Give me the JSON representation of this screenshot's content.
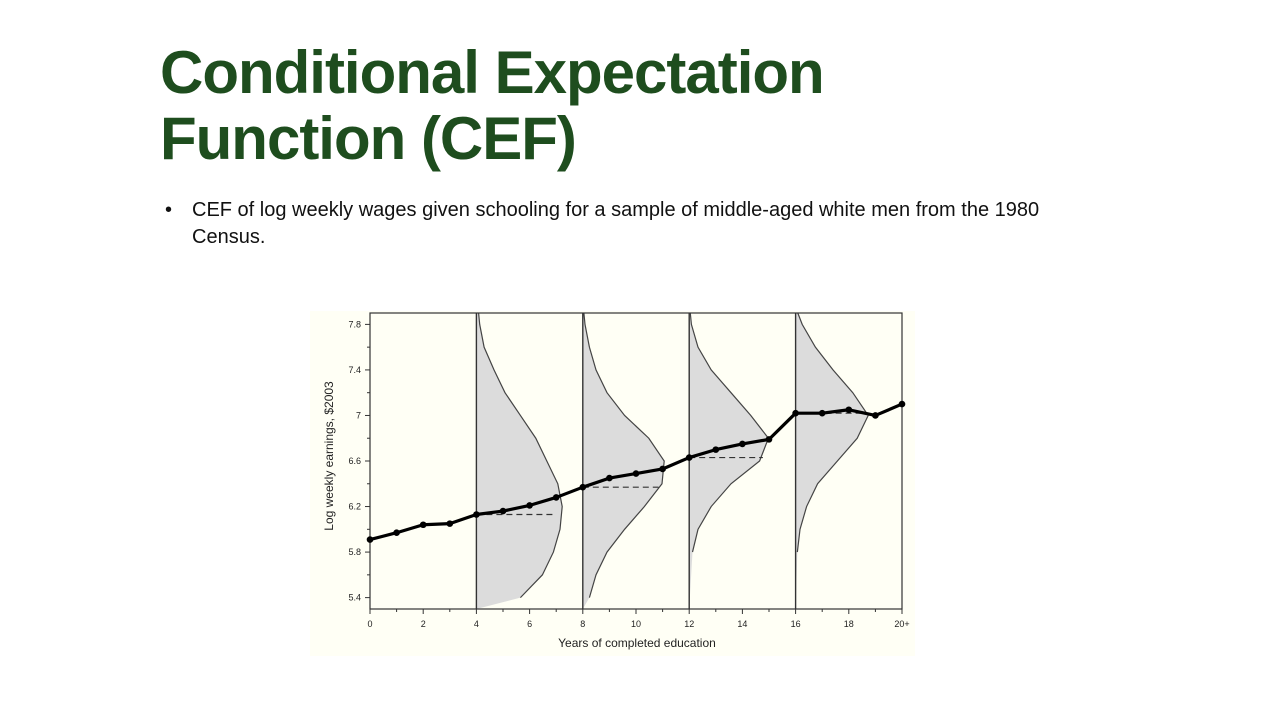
{
  "slide": {
    "title_line1": "Conditional Expectation",
    "title_line2": "Function (CEF)",
    "bullets": [
      "CEF of log weekly wages given schooling for a sample of middle-aged white men from the 1980 Census."
    ],
    "bullet_marker": "•"
  },
  "colors": {
    "title": "#1e4d1e",
    "plot_background": "#fffff5",
    "density_fill": "#dcdcdc",
    "line": "#000000"
  },
  "chart_data": {
    "type": "line",
    "xlabel": "Years of completed education",
    "ylabel": "Log weekly earnings, $2003",
    "xlim": [
      0,
      20
    ],
    "ylim": [
      5.3,
      7.9
    ],
    "x_ticks": [
      0,
      2,
      4,
      6,
      8,
      10,
      12,
      14,
      16,
      18,
      20
    ],
    "x_tick_labels": [
      "0",
      "2",
      "4",
      "6",
      "8",
      "10",
      "12",
      "14",
      "16",
      "18",
      "20+"
    ],
    "y_ticks": [
      5.4,
      5.8,
      6.2,
      6.6,
      7.0,
      7.4,
      7.8
    ],
    "y_tick_labels": [
      "5.4",
      "5.8",
      "6.2",
      "6.6",
      "7",
      "7.4",
      "7.8"
    ],
    "grid": false,
    "legend": "none",
    "series": [
      {
        "x": [
          0,
          1,
          2,
          3,
          4,
          5,
          6,
          7,
          8,
          9,
          10,
          11,
          12,
          13,
          14,
          15,
          16,
          17,
          18,
          19,
          20
        ],
        "y": [
          5.91,
          5.97,
          6.04,
          6.05,
          6.13,
          6.16,
          6.21,
          6.28,
          6.37,
          6.45,
          6.49,
          6.53,
          6.63,
          6.7,
          6.75,
          6.79,
          7.02,
          7.02,
          7.05,
          7.0,
          7.1
        ]
      }
    ],
    "conditional_distributions": [
      {
        "at_x": 4,
        "mean": 6.13,
        "density": [
          [
            5.4,
            2.0
          ],
          [
            5.6,
            3.0
          ],
          [
            5.8,
            3.5
          ],
          [
            6.0,
            3.8
          ],
          [
            6.2,
            3.9
          ],
          [
            6.4,
            3.7
          ],
          [
            6.6,
            3.2
          ],
          [
            6.8,
            2.7
          ],
          [
            7.0,
            2.0
          ],
          [
            7.2,
            1.3
          ],
          [
            7.4,
            0.8
          ],
          [
            7.6,
            0.35
          ],
          [
            7.8,
            0.15
          ],
          [
            7.9,
            0.1
          ]
        ]
      },
      {
        "at_x": 8,
        "mean": 6.37,
        "density": [
          [
            5.4,
            0.3
          ],
          [
            5.6,
            0.6
          ],
          [
            5.8,
            1.1
          ],
          [
            6.0,
            1.9
          ],
          [
            6.2,
            2.8
          ],
          [
            6.4,
            3.6
          ],
          [
            6.6,
            3.7
          ],
          [
            6.8,
            3.0
          ],
          [
            7.0,
            1.9
          ],
          [
            7.2,
            1.1
          ],
          [
            7.4,
            0.6
          ],
          [
            7.6,
            0.3
          ],
          [
            7.8,
            0.1
          ],
          [
            7.9,
            0.05
          ]
        ]
      },
      {
        "at_x": 12,
        "mean": 6.63,
        "density": [
          [
            5.8,
            0.15
          ],
          [
            6.0,
            0.4
          ],
          [
            6.2,
            1.0
          ],
          [
            6.4,
            1.9
          ],
          [
            6.6,
            3.2
          ],
          [
            6.8,
            3.6
          ],
          [
            7.0,
            2.8
          ],
          [
            7.2,
            1.9
          ],
          [
            7.4,
            1.0
          ],
          [
            7.6,
            0.4
          ],
          [
            7.8,
            0.1
          ],
          [
            7.9,
            0.05
          ]
        ]
      },
      {
        "at_x": 16,
        "mean": 7.02,
        "density": [
          [
            5.8,
            0.08
          ],
          [
            6.0,
            0.2
          ],
          [
            6.2,
            0.5
          ],
          [
            6.4,
            1.0
          ],
          [
            6.6,
            1.9
          ],
          [
            6.8,
            2.8
          ],
          [
            7.0,
            3.3
          ],
          [
            7.2,
            2.6
          ],
          [
            7.4,
            1.7
          ],
          [
            7.6,
            0.9
          ],
          [
            7.8,
            0.3
          ],
          [
            7.9,
            0.1
          ]
        ]
      }
    ]
  }
}
